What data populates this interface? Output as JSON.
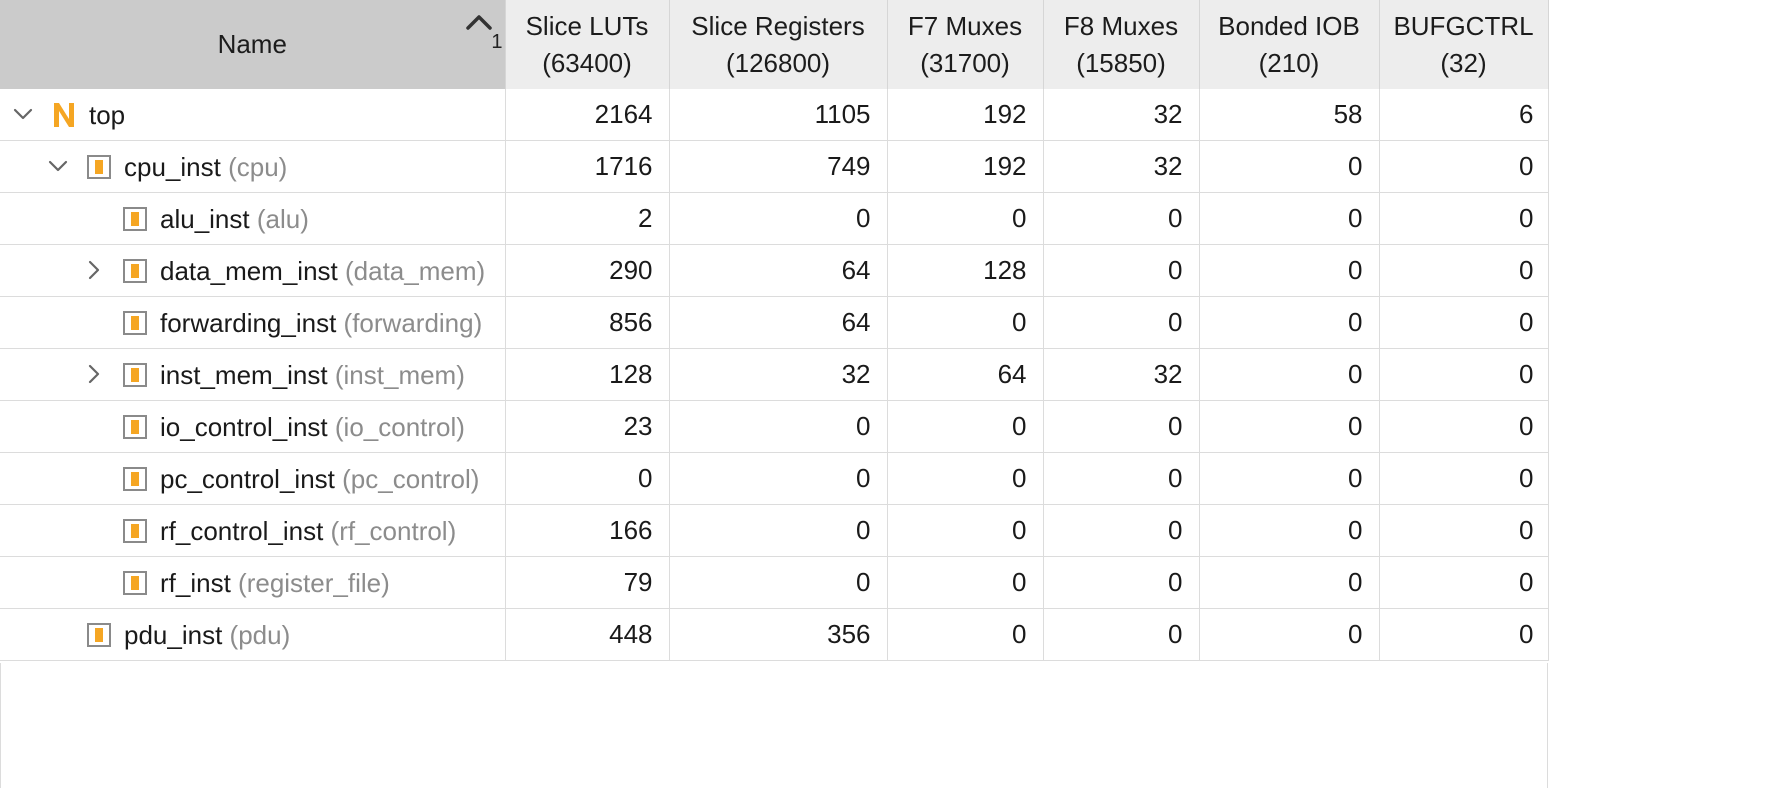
{
  "header": {
    "name": "Name",
    "sort_rank": "1",
    "columns": [
      {
        "line1": "Slice LUTs",
        "line2": "(63400)"
      },
      {
        "line1": "Slice Registers",
        "line2": "(126800)"
      },
      {
        "line1": "F7 Muxes",
        "line2": "(31700)"
      },
      {
        "line1": "F8 Muxes",
        "line2": "(15850)"
      },
      {
        "line1": "Bonded IOB",
        "line2": "(210)"
      },
      {
        "line1": "BUFGCTRL",
        "line2": "(32)"
      }
    ]
  },
  "rows": [
    {
      "inst": "top",
      "module": "",
      "values": [
        "2164",
        "1105",
        "192",
        "32",
        "58",
        "6"
      ]
    },
    {
      "inst": "cpu_inst",
      "module": "(cpu)",
      "values": [
        "1716",
        "749",
        "192",
        "32",
        "0",
        "0"
      ]
    },
    {
      "inst": "alu_inst",
      "module": "(alu)",
      "values": [
        "2",
        "0",
        "0",
        "0",
        "0",
        "0"
      ]
    },
    {
      "inst": "data_mem_inst",
      "module": "(data_mem)",
      "values": [
        "290",
        "64",
        "128",
        "0",
        "0",
        "0"
      ]
    },
    {
      "inst": "forwarding_inst",
      "module": "(forwarding)",
      "values": [
        "856",
        "64",
        "0",
        "0",
        "0",
        "0"
      ]
    },
    {
      "inst": "inst_mem_inst",
      "module": "(inst_mem)",
      "values": [
        "128",
        "32",
        "64",
        "32",
        "0",
        "0"
      ]
    },
    {
      "inst": "io_control_inst",
      "module": "(io_control)",
      "values": [
        "23",
        "0",
        "0",
        "0",
        "0",
        "0"
      ]
    },
    {
      "inst": "pc_control_inst",
      "module": "(pc_control)",
      "values": [
        "0",
        "0",
        "0",
        "0",
        "0",
        "0"
      ]
    },
    {
      "inst": "rf_control_inst",
      "module": "(rf_control)",
      "values": [
        "166",
        "0",
        "0",
        "0",
        "0",
        "0"
      ]
    },
    {
      "inst": "rf_inst",
      "module": "(register_file)",
      "values": [
        "79",
        "0",
        "0",
        "0",
        "0",
        "0"
      ]
    },
    {
      "inst": "pdu_inst",
      "module": "(pdu)",
      "values": [
        "448",
        "356",
        "0",
        "0",
        "0",
        "0"
      ]
    }
  ],
  "colors": {
    "header_name_bg": "#cbcbcb",
    "header_bg": "#ededed",
    "icon_accent": "#f5a623",
    "module_text": "#8c8c8c",
    "grid": "#dcdcdc"
  }
}
